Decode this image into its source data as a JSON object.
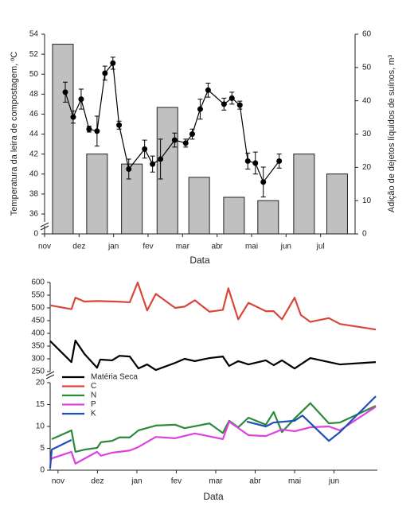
{
  "chart_data": [
    {
      "type": "combo",
      "xlabel": "Data",
      "ylabel": "Temperatura da leira de compostagem, ºC",
      "y2label": "Adição de dejetos líquidos de suínos, m³",
      "xlim": [
        0,
        9
      ],
      "xticks": [
        {
          "value": 0,
          "label": "nov"
        },
        {
          "value": 1,
          "label": "dez"
        },
        {
          "value": 2,
          "label": "jan"
        },
        {
          "value": 3,
          "label": "fev"
        },
        {
          "value": 4,
          "label": "mar"
        },
        {
          "value": 5,
          "label": "abr"
        },
        {
          "value": 6,
          "label": "mai"
        },
        {
          "value": 7,
          "label": "jun"
        },
        {
          "value": 8,
          "label": "jul"
        }
      ],
      "ylim": [
        36,
        54
      ],
      "yticks": [
        36,
        38,
        40,
        42,
        44,
        46,
        48,
        50,
        52,
        54
      ],
      "y_break_ticks": [
        0
      ],
      "y2lim": [
        0,
        60
      ],
      "y2ticks": [
        0,
        10,
        20,
        30,
        40,
        50,
        60
      ],
      "series": [
        {
          "type": "bar",
          "axis": "y2",
          "color": "#c0c0c0",
          "x": [
            0.53,
            1.52,
            2.53,
            3.56,
            4.48,
            5.49,
            6.48,
            7.52,
            8.48
          ],
          "values": [
            57,
            24,
            21,
            38,
            17,
            11,
            10,
            24,
            18
          ]
        },
        {
          "type": "line",
          "axis": "y",
          "color": "#000000",
          "x": [
            0.6,
            0.83,
            1.06,
            1.29,
            1.52,
            1.75,
            1.98,
            2.16,
            2.44,
            2.9,
            3.13,
            3.36,
            3.77,
            4.09,
            4.28,
            4.51,
            4.74,
            5.2,
            5.43,
            5.66,
            5.89,
            6.11,
            6.34,
            6.8
          ],
          "values": [
            48.2,
            45.7,
            47.5,
            44.5,
            44.3,
            50.1,
            51.1,
            44.9,
            40.5,
            42.5,
            41,
            41.5,
            43.4,
            43.1,
            44,
            46.5,
            48.4,
            47,
            47.6,
            46.9,
            41.3,
            41.1,
            39.2,
            41.3
          ],
          "errors": [
            1,
            0.6,
            1,
            0.3,
            1.5,
            0.7,
            0.6,
            0.4,
            1,
            0.9,
            0.8,
            2,
            0.7,
            0.4,
            0.5,
            1,
            0.7,
            0.6,
            0.6,
            0.4,
            0.8,
            1.1,
            1.5,
            0.7
          ]
        }
      ]
    },
    {
      "type": "line",
      "xlabel": "Data",
      "xlim": [
        -0.2,
        8.1
      ],
      "xticks": [
        {
          "value": 0,
          "label": "nov"
        },
        {
          "value": 1,
          "label": "dez"
        },
        {
          "value": 2,
          "label": "jan"
        },
        {
          "value": 3,
          "label": "fev"
        },
        {
          "value": 4,
          "label": "mar"
        },
        {
          "value": 5,
          "label": "abr"
        },
        {
          "value": 6,
          "label": "mai"
        },
        {
          "value": 7,
          "label": "jun"
        }
      ],
      "ylim": [
        0,
        20
      ],
      "yticks": [
        0,
        5,
        10,
        15,
        20
      ],
      "ylim_upper": [
        250,
        600
      ],
      "yticks_upper": [
        250,
        300,
        350,
        400,
        450,
        500,
        550,
        600
      ],
      "legend": "upper left",
      "series": [
        {
          "name": "Matéria Seca",
          "color": "#000000",
          "axis": "upper",
          "x": [
            -0.2,
            0.34,
            0.44,
            0.67,
            0.99,
            1.07,
            1.37,
            1.56,
            1.82,
            2.04,
            2.26,
            2.48,
            2.97,
            3.21,
            3.47,
            3.84,
            4.18,
            4.34,
            4.57,
            4.83,
            5.27,
            5.47,
            5.68,
            6.0,
            6.4,
            7.15,
            8.06
          ],
          "values": [
            370,
            287,
            372,
            319,
            265,
            297,
            294,
            312,
            309,
            262,
            278,
            256,
            284,
            300,
            291,
            303,
            309,
            272,
            291,
            278,
            294,
            275,
            294,
            262,
            303,
            278,
            287
          ]
        },
        {
          "name": "C",
          "color": "#d9463a",
          "axis": "upper",
          "x": [
            -0.2,
            0.34,
            0.44,
            0.67,
            0.99,
            1.45,
            1.82,
            2.02,
            2.26,
            2.48,
            2.97,
            3.21,
            3.47,
            3.84,
            4.18,
            4.32,
            4.57,
            4.83,
            5.27,
            5.47,
            5.68,
            6.0,
            6.16,
            6.4,
            6.87,
            7.15,
            8.06
          ],
          "values": [
            510,
            495,
            540,
            525,
            527,
            525,
            522,
            600,
            490,
            555,
            500,
            505,
            530,
            485,
            492,
            577,
            455,
            520,
            487,
            487,
            455,
            540,
            472,
            445,
            460,
            437,
            415
          ]
        },
        {
          "name": "N",
          "color": "#2a8a3a",
          "axis": "lower",
          "x": [
            -0.16,
            0.34,
            0.44,
            0.67,
            0.99,
            1.09,
            1.37,
            1.56,
            1.82,
            2.04,
            2.48,
            2.97,
            3.21,
            3.84,
            4.18,
            4.34,
            4.57,
            4.83,
            5.27,
            5.47,
            5.68,
            6.0,
            6.4,
            6.87,
            7.15,
            8.06
          ],
          "values": [
            7.1,
            9.1,
            4.2,
            4.7,
            5.1,
            6.4,
            6.7,
            7.5,
            7.5,
            9.1,
            10.2,
            10.4,
            9.6,
            10.7,
            8.5,
            11.3,
            9.8,
            12,
            10.4,
            13.3,
            8.7,
            11.8,
            15.3,
            10.7,
            10.9,
            14.7
          ]
        },
        {
          "name": "P",
          "color": "#e040e0",
          "axis": "lower",
          "x": [
            -0.2,
            -0.16,
            0.34,
            0.44,
            0.99,
            1.09,
            1.37,
            1.82,
            2.04,
            2.48,
            2.97,
            3.47,
            4.18,
            4.34,
            4.83,
            5.27,
            5.68,
            6.0,
            6.4,
            6.87,
            7.15,
            8.06
          ],
          "values": [
            2,
            2.7,
            4.2,
            1.5,
            4.2,
            3.3,
            4,
            4.5,
            5.3,
            7.6,
            7.3,
            8.4,
            7.1,
            11.1,
            8,
            7.8,
            9.3,
            8.9,
            9.8,
            10,
            9.1,
            14.5
          ]
        },
        {
          "name": "K",
          "color": "#1f4fb8",
          "axis": "lower",
          "x": [
            -0.2,
            -0.16,
            0.34,
            2.5,
            4.79,
            5.27,
            5.47,
            6.0,
            6.2,
            6.87,
            7.15,
            8.06
          ],
          "values": [
            0.5,
            4.7,
            6.9,
            null,
            11.1,
            10,
            10.9,
            11.3,
            12.5,
            6.7,
            8.7,
            16.9
          ]
        }
      ]
    }
  ]
}
